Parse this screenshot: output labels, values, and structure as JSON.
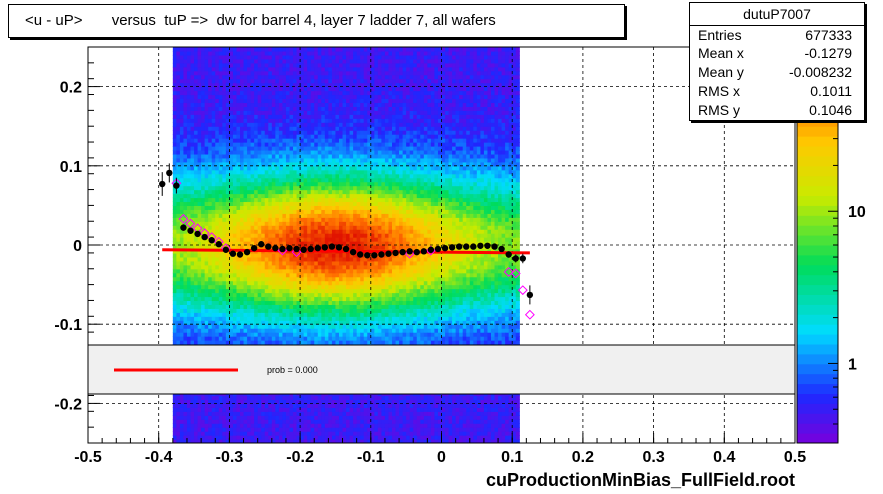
{
  "title": "<u - uP>       versus  tuP =>  dw for barrel 4, layer 7 ladder 7, all wafers",
  "footer": "cuProductionMinBias_FullField.root",
  "stats": {
    "name": "dutuP7007",
    "rows": [
      {
        "label": "Entries",
        "value": "677333"
      },
      {
        "label": "Mean x",
        "value": "-0.1279"
      },
      {
        "label": "Mean y",
        "value": "-0.008232"
      },
      {
        "label": "RMS x",
        "value": "0.1011"
      },
      {
        "label": "RMS y",
        "value": "0.1046"
      }
    ]
  },
  "fit_legend": {
    "text": "prob = 0.000",
    "line_color": "#ff0000"
  },
  "colors": {
    "fit_line": "#ff0000",
    "profile_filled": "#000000",
    "profile_open": "#ff00ff",
    "legend_bg": "#f0f0f0"
  },
  "chart_data": {
    "type": "heatmap",
    "title": "<u - uP>       versus  tuP =>  dw for barrel 4, layer 7 ladder 7, all wafers",
    "xlim": [
      -0.5,
      0.5
    ],
    "ylim": [
      -0.25,
      0.25
    ],
    "x_ticks": [
      -0.5,
      -0.4,
      -0.3,
      -0.2,
      -0.1,
      0,
      0.1,
      0.2,
      0.3,
      0.4,
      0.5
    ],
    "x_tick_labels": [
      "-0.5",
      "-0.4",
      "-0.3",
      "-0.2",
      "-0.1",
      "0",
      "0.1",
      "0.2",
      "0.3",
      "0.4",
      "0.5"
    ],
    "y_ticks": [
      -0.2,
      -0.1,
      0,
      0.1,
      0.2
    ],
    "y_tick_labels": [
      "-0.2",
      "-0.1",
      "0",
      "0.1",
      "0.2"
    ],
    "grid": true,
    "colorbar": {
      "scale": "log",
      "tick_values": [
        1,
        10
      ],
      "tick_labels": [
        "1",
        "10"
      ],
      "range": [
        0.3,
        120
      ]
    },
    "occupancy_x_range": [
      -0.38,
      0.11
    ],
    "fit": {
      "type": "linear",
      "x_range": [
        -0.395,
        0.125
      ],
      "y_start": -0.006,
      "y_end": -0.01
    },
    "profile_filled": [
      {
        "x": -0.395,
        "y": 0.077,
        "err": 0.015
      },
      {
        "x": -0.385,
        "y": 0.091,
        "err": 0.012
      },
      {
        "x": -0.375,
        "y": 0.075,
        "err": 0.01
      },
      {
        "x": -0.365,
        "y": 0.022,
        "err": 0.004
      },
      {
        "x": -0.355,
        "y": 0.018,
        "err": 0.003
      },
      {
        "x": -0.345,
        "y": 0.014,
        "err": 0.003
      },
      {
        "x": -0.335,
        "y": 0.01,
        "err": 0.002
      },
      {
        "x": -0.325,
        "y": 0.006,
        "err": 0.002
      },
      {
        "x": -0.315,
        "y": 0.001,
        "err": 0.002
      },
      {
        "x": -0.305,
        "y": -0.006,
        "err": 0.002
      },
      {
        "x": -0.295,
        "y": -0.011,
        "err": 0.002
      },
      {
        "x": -0.285,
        "y": -0.012,
        "err": 0.002
      },
      {
        "x": -0.275,
        "y": -0.009,
        "err": 0.002
      },
      {
        "x": -0.265,
        "y": -0.004,
        "err": 0.002
      },
      {
        "x": -0.255,
        "y": 0.001,
        "err": 0.002
      },
      {
        "x": -0.245,
        "y": -0.002,
        "err": 0.002
      },
      {
        "x": -0.235,
        "y": -0.004,
        "err": 0.002
      },
      {
        "x": -0.225,
        "y": -0.005,
        "err": 0.002
      },
      {
        "x": -0.215,
        "y": -0.004,
        "err": 0.002
      },
      {
        "x": -0.205,
        "y": -0.005,
        "err": 0.002
      },
      {
        "x": -0.195,
        "y": -0.006,
        "err": 0.002
      },
      {
        "x": -0.185,
        "y": -0.005,
        "err": 0.002
      },
      {
        "x": -0.175,
        "y": -0.004,
        "err": 0.002
      },
      {
        "x": -0.165,
        "y": -0.003,
        "err": 0.002
      },
      {
        "x": -0.155,
        "y": -0.002,
        "err": 0.002
      },
      {
        "x": -0.145,
        "y": -0.003,
        "err": 0.002
      },
      {
        "x": -0.135,
        "y": -0.005,
        "err": 0.002
      },
      {
        "x": -0.125,
        "y": -0.009,
        "err": 0.002
      },
      {
        "x": -0.115,
        "y": -0.012,
        "err": 0.002
      },
      {
        "x": -0.105,
        "y": -0.013,
        "err": 0.002
      },
      {
        "x": -0.095,
        "y": -0.013,
        "err": 0.002
      },
      {
        "x": -0.085,
        "y": -0.012,
        "err": 0.002
      },
      {
        "x": -0.075,
        "y": -0.011,
        "err": 0.002
      },
      {
        "x": -0.065,
        "y": -0.01,
        "err": 0.002
      },
      {
        "x": -0.055,
        "y": -0.009,
        "err": 0.002
      },
      {
        "x": -0.045,
        "y": -0.008,
        "err": 0.002
      },
      {
        "x": -0.035,
        "y": -0.009,
        "err": 0.002
      },
      {
        "x": -0.025,
        "y": -0.008,
        "err": 0.002
      },
      {
        "x": -0.015,
        "y": -0.006,
        "err": 0.002
      },
      {
        "x": -0.005,
        "y": -0.005,
        "err": 0.002
      },
      {
        "x": 0.005,
        "y": -0.004,
        "err": 0.002
      },
      {
        "x": 0.015,
        "y": -0.003,
        "err": 0.002
      },
      {
        "x": 0.025,
        "y": -0.002,
        "err": 0.002
      },
      {
        "x": 0.035,
        "y": -0.002,
        "err": 0.002
      },
      {
        "x": 0.045,
        "y": -0.002,
        "err": 0.002
      },
      {
        "x": 0.055,
        "y": -0.001,
        "err": 0.002
      },
      {
        "x": 0.065,
        "y": -0.001,
        "err": 0.002
      },
      {
        "x": 0.075,
        "y": -0.002,
        "err": 0.002
      },
      {
        "x": 0.085,
        "y": -0.005,
        "err": 0.003
      },
      {
        "x": 0.095,
        "y": -0.012,
        "err": 0.004
      },
      {
        "x": 0.105,
        "y": -0.017,
        "err": 0.005
      },
      {
        "x": 0.115,
        "y": -0.017,
        "err": 0.006
      },
      {
        "x": 0.125,
        "y": -0.063,
        "err": 0.012
      }
    ],
    "profile_open": [
      {
        "x": -0.375,
        "y": 0.078
      },
      {
        "x": -0.365,
        "y": 0.033
      },
      {
        "x": -0.355,
        "y": 0.027
      },
      {
        "x": -0.345,
        "y": 0.021
      },
      {
        "x": -0.335,
        "y": 0.015
      },
      {
        "x": -0.325,
        "y": 0.01
      },
      {
        "x": -0.315,
        "y": 0.004
      },
      {
        "x": -0.305,
        "y": -0.004
      },
      {
        "x": -0.225,
        "y": -0.007
      },
      {
        "x": -0.205,
        "y": -0.009
      },
      {
        "x": -0.045,
        "y": -0.011
      },
      {
        "x": -0.015,
        "y": -0.007
      },
      {
        "x": 0.095,
        "y": -0.034
      },
      {
        "x": 0.105,
        "y": -0.036
      },
      {
        "x": 0.115,
        "y": -0.057
      },
      {
        "x": 0.125,
        "y": -0.088
      }
    ]
  }
}
